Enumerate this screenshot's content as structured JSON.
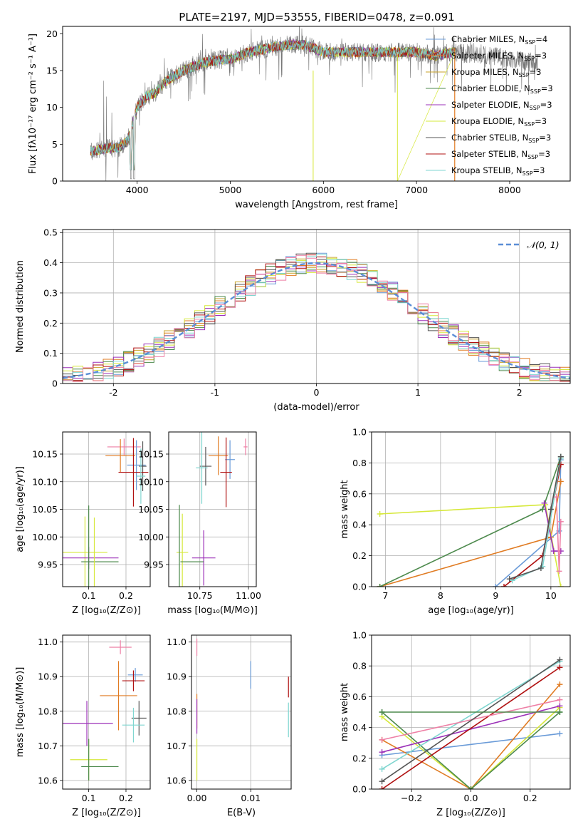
{
  "figure_title": "PLATE=2197, MJD=53555, FIBERID=0478, z=0.091",
  "colors": {
    "miles_chabrier": "#6a9bd8",
    "miles_salpeter": "#e07b22",
    "miles_kroupa": "#c9a227",
    "elodie_chabrier": "#4d8a4d",
    "elodie_salpeter": "#9b30b8",
    "elodie_kroupa": "#d6e83a",
    "stelib_chabrier": "#555555",
    "stelib_salpeter": "#b01010",
    "stelib_kroupa": "#7fd6d0",
    "resid_pink": "#ee7fa5",
    "resid_teal": "#6fc7bf",
    "dashed_fit": "#5b8ed6"
  },
  "chart_data": [
    {
      "id": "spectrum",
      "type": "line",
      "title": "PLATE=2197, MJD=53555, FIBERID=0478, z=0.091",
      "xlabel": "wavelength [Angstrom, rest frame]",
      "ylabel": "Flux [fλ10⁻¹⁷ erg cm⁻² s⁻¹ A⁻¹]",
      "xlim": [
        3200,
        8650
      ],
      "ylim": [
        0,
        21
      ],
      "xticks": [
        4000,
        5000,
        6000,
        7000,
        8000
      ],
      "yticks": [
        0,
        5,
        10,
        15,
        20
      ],
      "grid": false,
      "legend_position": "top-right",
      "legend": [
        {
          "label": "Chabrier MILES, N",
          "sub": "SSP",
          "suffix": "=4",
          "color": "#6a9bd8"
        },
        {
          "label": "Salpeter MILES, N",
          "sub": "SSP",
          "suffix": "=3",
          "color": "#e07b22"
        },
        {
          "label": "Kroupa MILES, N",
          "sub": "SSP",
          "suffix": "=3",
          "color": "#c9a227"
        },
        {
          "label": "Chabrier ELODIE, N",
          "sub": "SSP",
          "suffix": "=3",
          "color": "#4d8a4d"
        },
        {
          "label": "Salpeter ELODIE, N",
          "sub": "SSP",
          "suffix": "=3",
          "color": "#9b30b8"
        },
        {
          "label": "Kroupa ELODIE, N",
          "sub": "SSP",
          "suffix": "=3",
          "color": "#d6e83a"
        },
        {
          "label": "Chabrier STELIB, N",
          "sub": "SSP",
          "suffix": "=3",
          "color": "#555555"
        },
        {
          "label": "Salpeter STELIB, N",
          "sub": "SSP",
          "suffix": "=3",
          "color": "#b01010"
        },
        {
          "label": "Kroupa STELIB, N",
          "sub": "SSP",
          "suffix": "=3",
          "color": "#7fd6d0"
        }
      ],
      "continuum": {
        "x": [
          3500,
          3700,
          3800,
          3900,
          4000,
          4100,
          4200,
          4300,
          4500,
          4700,
          4900,
          5000,
          5100,
          5200,
          5400,
          5600,
          5800,
          6000,
          6200,
          6400,
          6600,
          6800,
          7000,
          7200,
          7400,
          7800,
          8300
        ],
        "y": [
          4.0,
          4.5,
          4.5,
          5.5,
          10.0,
          11.5,
          12.0,
          13.5,
          15.0,
          16.0,
          16.5,
          16.5,
          17.0,
          17.5,
          18.0,
          18.5,
          18.5,
          17.5,
          17.5,
          17.5,
          17.5,
          17.5,
          17.5,
          17.0,
          17.5,
          17.0,
          16.0
        ]
      },
      "observed_range": [
        3500,
        8300
      ],
      "models_range": [
        3500,
        7420
      ]
    },
    {
      "id": "residuals",
      "type": "histogram",
      "xlabel": "(data-model)/error",
      "ylabel": "Normed distribution",
      "xlim": [
        -2.5,
        2.5
      ],
      "ylim": [
        0,
        0.51
      ],
      "xticks": [
        -2,
        -1,
        0,
        1,
        2
      ],
      "yticks": [
        0.0,
        0.1,
        0.2,
        0.3,
        0.4,
        0.5
      ],
      "grid": true,
      "legend_position": "top-right",
      "fit_label": "𝒩(0, 1)",
      "bin_width": 0.1,
      "series": [
        {
          "color": "#6a9bd8",
          "seed": 1
        },
        {
          "color": "#e07b22",
          "seed": 2
        },
        {
          "color": "#c9a227",
          "seed": 3
        },
        {
          "color": "#4d8a4d",
          "seed": 4
        },
        {
          "color": "#9b30b8",
          "seed": 5
        },
        {
          "color": "#d6e83a",
          "seed": 6
        },
        {
          "color": "#555555",
          "seed": 7
        },
        {
          "color": "#b01010",
          "seed": 8
        },
        {
          "color": "#7fd6d0",
          "seed": 9
        },
        {
          "color": "#ee7fa5",
          "seed": 10
        }
      ]
    },
    {
      "id": "age-vs-z",
      "type": "errorbar",
      "xlabel": "Z [log₁₀(Z/Z⊙)]",
      "ylabel": "age  [log₁₀(age/yr)]",
      "xlim": [
        0.03,
        0.265
      ],
      "ylim": [
        9.91,
        10.19
      ],
      "xticks": [
        0.1,
        0.2
      ],
      "xticklabels": [
        "0.1",
        "0.2"
      ],
      "yticks": [
        9.95,
        10.0,
        10.05,
        10.1,
        10.15
      ],
      "yticklabels": [
        "9.95",
        "10.00",
        "10.05",
        "10.10",
        "10.15"
      ],
      "grid": true,
      "points": [
        {
          "x": 0.195,
          "y": 10.163,
          "xerr": 0.045,
          "yerr": 0.015,
          "color": "#ee7fa5"
        },
        {
          "x": 0.185,
          "y": 10.147,
          "xerr": 0.04,
          "yerr": 0.03,
          "color": "#e07b22"
        },
        {
          "x": 0.228,
          "y": 10.13,
          "xerr": 0.025,
          "yerr": 0.045,
          "color": "#6a9bd8"
        },
        {
          "x": 0.245,
          "y": 10.128,
          "xerr": 0.01,
          "yerr": 0.045,
          "color": "#555555"
        },
        {
          "x": 0.22,
          "y": 10.117,
          "xerr": 0.04,
          "yerr": 0.062,
          "color": "#b01010"
        },
        {
          "x": 0.24,
          "y": 10.11,
          "xerr": 0.012,
          "yerr": 0.05,
          "color": "#7fd6d0"
        },
        {
          "x": 0.09,
          "y": 9.972,
          "xerr": 0.06,
          "yerr": 0.065,
          "color": "#d6e83a"
        },
        {
          "x": 0.1,
          "y": 9.962,
          "xerr": 0.08,
          "yerr": 0.02,
          "color": "#9b30b8"
        },
        {
          "x": 0.1,
          "y": 9.962,
          "xerr": 0.0,
          "yerr": 0.095,
          "color": "#4d8a4d"
        },
        {
          "x": 0.13,
          "y": 9.955,
          "xerr": 0.05,
          "yerr": 0.0,
          "color": "#4d8a4d"
        },
        {
          "x": 0.115,
          "y": 9.97,
          "xerr": 0.0,
          "yerr": 0.065,
          "color": "#d6e83a"
        }
      ]
    },
    {
      "id": "age-vs-mass",
      "type": "errorbar",
      "xlabel": "mass [log₁₀(M/M⊙)]",
      "ylabel": "",
      "xlim": [
        10.59,
        11.04
      ],
      "ylim": [
        9.91,
        10.19
      ],
      "xticks": [
        10.75,
        11.0
      ],
      "xticklabels": [
        "10.75",
        "11.00"
      ],
      "yticks": [
        9.95,
        10.0,
        10.05,
        10.1,
        10.15
      ],
      "yticklabels": [
        "9.95",
        "10.00",
        "10.05",
        "10.10",
        "10.15"
      ],
      "grid": true,
      "points": [
        {
          "x": 10.985,
          "y": 10.163,
          "xerr": 0.01,
          "yerr": 0.015,
          "color": "#ee7fa5"
        },
        {
          "x": 10.845,
          "y": 10.147,
          "xerr": 0.05,
          "yerr": 0.035,
          "color": "#e07b22"
        },
        {
          "x": 10.905,
          "y": 10.14,
          "xerr": 0.025,
          "yerr": 0.035,
          "color": "#6a9bd8"
        },
        {
          "x": 10.78,
          "y": 10.128,
          "xerr": 0.03,
          "yerr": 0.035,
          "color": "#555555"
        },
        {
          "x": 10.885,
          "y": 10.117,
          "xerr": 0.03,
          "yerr": 0.063,
          "color": "#b01010"
        },
        {
          "x": 10.76,
          "y": 10.125,
          "xerr": 0.03,
          "yerr": 0.065,
          "color": "#7fd6d0"
        },
        {
          "x": 10.66,
          "y": 9.972,
          "xerr": 0.03,
          "yerr": 0.07,
          "color": "#d6e83a"
        },
        {
          "x": 10.77,
          "y": 9.962,
          "xerr": 0.06,
          "yerr": 0.05,
          "color": "#9b30b8"
        },
        {
          "x": 10.645,
          "y": 9.963,
          "xerr": 0.0,
          "yerr": 0.095,
          "color": "#4d8a4d"
        },
        {
          "x": 10.71,
          "y": 9.955,
          "xerr": 0.06,
          "yerr": 0.0,
          "color": "#4d8a4d"
        }
      ]
    },
    {
      "id": "weight-vs-age",
      "type": "line",
      "xlabel": "age  [log₁₀(age/yr)]",
      "ylabel": "mass weight",
      "xlim": [
        6.75,
        10.35
      ],
      "ylim": [
        0,
        1
      ],
      "xticks": [
        7,
        8,
        9,
        10
      ],
      "xticklabels": [
        "7",
        "8",
        "9",
        "10"
      ],
      "yticks": [
        0,
        0.2,
        0.4,
        0.6,
        0.8,
        1.0
      ],
      "yticklabels": [
        "0.0",
        "0.2",
        "0.4",
        "0.6",
        "0.8",
        "1.0"
      ],
      "grid": true,
      "series": [
        {
          "color": "#6a9bd8",
          "x": [
            9.0,
            10.15,
            10.18
          ],
          "y": [
            0.0,
            0.36,
            0.82
          ]
        },
        {
          "color": "#e07b22",
          "x": [
            6.9,
            10.0,
            10.18
          ],
          "y": [
            0.0,
            0.32,
            0.68
          ]
        },
        {
          "color": "#d6e83a",
          "x": [
            6.9,
            9.9,
            10.18
          ],
          "y": [
            0.47,
            0.53,
            0.0
          ]
        },
        {
          "color": "#4d8a4d",
          "x": [
            6.9,
            9.85,
            10.18
          ],
          "y": [
            0.0,
            0.5,
            0.84
          ]
        },
        {
          "color": "#9b30b8",
          "x": [
            9.88,
            10.05,
            10.18
          ],
          "y": [
            0.54,
            0.23,
            0.23
          ]
        },
        {
          "color": "#b01010",
          "x": [
            9.15,
            9.85,
            10.18
          ],
          "y": [
            0.0,
            0.2,
            0.79
          ]
        },
        {
          "color": "#7fd6d0",
          "x": [
            9.3,
            9.85,
            10.18
          ],
          "y": [
            0.04,
            0.13,
            0.83
          ]
        },
        {
          "color": "#ee7fa5",
          "x": [
            10.1,
            10.15,
            10.18
          ],
          "y": [
            0.58,
            0.1,
            0.42
          ]
        },
        {
          "color": "#555555",
          "x": [
            9.25,
            9.82,
            10.0,
            10.18
          ],
          "y": [
            0.05,
            0.12,
            0.5,
            0.84
          ]
        }
      ]
    },
    {
      "id": "mass-vs-z",
      "type": "errorbar",
      "xlabel": "Z [log₁₀(Z/Z⊙)]",
      "ylabel": "mass [log₁₀(M/M⊙)]",
      "xlim": [
        0.03,
        0.265
      ],
      "ylim": [
        10.575,
        11.02
      ],
      "xticks": [
        0.1,
        0.2
      ],
      "xticklabels": [
        "0.1",
        "0.2"
      ],
      "yticks": [
        10.6,
        10.7,
        10.8,
        10.9,
        11.0
      ],
      "yticklabels": [
        "10.6",
        "10.7",
        "10.8",
        "10.9",
        "11.0"
      ],
      "grid": true,
      "points": [
        {
          "x": 0.185,
          "y": 10.985,
          "xerr": 0.03,
          "yerr": 0.02,
          "color": "#ee7fa5"
        },
        {
          "x": 0.225,
          "y": 10.905,
          "xerr": 0.02,
          "yerr": 0.02,
          "color": "#6a9bd8"
        },
        {
          "x": 0.22,
          "y": 10.888,
          "xerr": 0.03,
          "yerr": 0.03,
          "color": "#b01010"
        },
        {
          "x": 0.18,
          "y": 10.845,
          "xerr": 0.05,
          "yerr": 0.1,
          "color": "#e07b22"
        },
        {
          "x": 0.235,
          "y": 10.78,
          "xerr": 0.02,
          "yerr": 0.05,
          "color": "#555555"
        },
        {
          "x": 0.22,
          "y": 10.76,
          "xerr": 0.03,
          "yerr": 0.05,
          "color": "#7fd6d0"
        },
        {
          "x": 0.095,
          "y": 10.765,
          "xerr": 0.07,
          "yerr": 0.065,
          "color": "#9b30b8"
        },
        {
          "x": 0.1,
          "y": 10.66,
          "xerr": 0.05,
          "yerr": 0.06,
          "color": "#d6e83a"
        },
        {
          "x": 0.13,
          "y": 10.64,
          "xerr": 0.05,
          "yerr": 0.0,
          "color": "#4d8a4d"
        },
        {
          "x": 0.1,
          "y": 10.66,
          "xerr": 0.0,
          "yerr": 0.06,
          "color": "#4d8a4d"
        }
      ]
    },
    {
      "id": "mass-vs-ebv",
      "type": "errorbar",
      "xlabel": "E(B-V)",
      "ylabel": "",
      "xlim": [
        -0.001,
        0.0175
      ],
      "ylim": [
        10.575,
        11.02
      ],
      "xticks": [
        0.0,
        0.01
      ],
      "xticklabels": [
        "0.00",
        "0.01"
      ],
      "yticks": [
        10.6,
        10.7,
        10.8,
        10.9,
        11.0
      ],
      "yticklabels": [
        "10.6",
        "10.7",
        "10.8",
        "10.9",
        "11.0"
      ],
      "grid": true,
      "points": [
        {
          "x": 0.0,
          "y": 10.985,
          "xerr": 0.0,
          "yerr": 0.025,
          "color": "#ee7fa5"
        },
        {
          "x": 0.01,
          "y": 10.905,
          "xerr": 0.0,
          "yerr": 0.04,
          "color": "#6a9bd8"
        },
        {
          "x": 0.017,
          "y": 10.87,
          "xerr": 0.0,
          "yerr": 0.03,
          "color": "#b01010"
        },
        {
          "x": 0.0,
          "y": 10.8,
          "xerr": 0.0,
          "yerr": 0.05,
          "color": "#e07b22"
        },
        {
          "x": 0.0,
          "y": 10.785,
          "xerr": 0.0,
          "yerr": 0.05,
          "color": "#9b30b8"
        },
        {
          "x": 0.017,
          "y": 10.775,
          "xerr": 0.0,
          "yerr": 0.05,
          "color": "#7fd6d0"
        },
        {
          "x": 0.0,
          "y": 10.66,
          "xerr": 0.0,
          "yerr": 0.06,
          "color": "#d6e83a"
        }
      ]
    },
    {
      "id": "weight-vs-z",
      "type": "line",
      "xlabel": "Z [log₁₀(Z/Z⊙)]",
      "ylabel": "mass weight",
      "xlim": [
        -0.335,
        0.335
      ],
      "ylim": [
        0,
        1
      ],
      "xticks": [
        -0.2,
        0.0,
        0.2
      ],
      "xticklabels": [
        "−0.2",
        "0.0",
        "0.2"
      ],
      "yticks": [
        0,
        0.2,
        0.4,
        0.6,
        0.8,
        1.0
      ],
      "yticklabels": [
        "0.0",
        "0.2",
        "0.4",
        "0.6",
        "0.8",
        "1.0"
      ],
      "grid": true,
      "series": [
        {
          "color": "#6a9bd8",
          "x": [
            -0.3,
            0.3
          ],
          "y": [
            0.22,
            0.36
          ]
        },
        {
          "color": "#e07b22",
          "x": [
            -0.3,
            0.0,
            0.3
          ],
          "y": [
            0.32,
            0.0,
            0.68
          ]
        },
        {
          "color": "#d6e83a",
          "x": [
            -0.3,
            0.0,
            0.3
          ],
          "y": [
            0.47,
            0.0,
            0.53
          ]
        },
        {
          "color": "#4d8a4d",
          "x": [
            -0.3,
            0.0,
            0.3
          ],
          "y": [
            0.5,
            0.0,
            0.5
          ]
        },
        {
          "color": "#9b30b8",
          "x": [
            -0.3,
            0.3
          ],
          "y": [
            0.24,
            0.54
          ]
        },
        {
          "color": "#b01010",
          "x": [
            -0.3,
            0.3
          ],
          "y": [
            0.0,
            0.79
          ]
        },
        {
          "color": "#7fd6d0",
          "x": [
            -0.3,
            0.3
          ],
          "y": [
            0.13,
            0.83
          ]
        },
        {
          "color": "#ee7fa5",
          "x": [
            -0.3,
            0.3
          ],
          "y": [
            0.32,
            0.58
          ]
        },
        {
          "color": "#555555",
          "x": [
            -0.3,
            0.3
          ],
          "y": [
            0.05,
            0.84
          ]
        },
        {
          "color": "#4d8a4d",
          "x": [
            -0.3,
            0.3
          ],
          "y": [
            0.5,
            0.5
          ]
        }
      ]
    }
  ]
}
